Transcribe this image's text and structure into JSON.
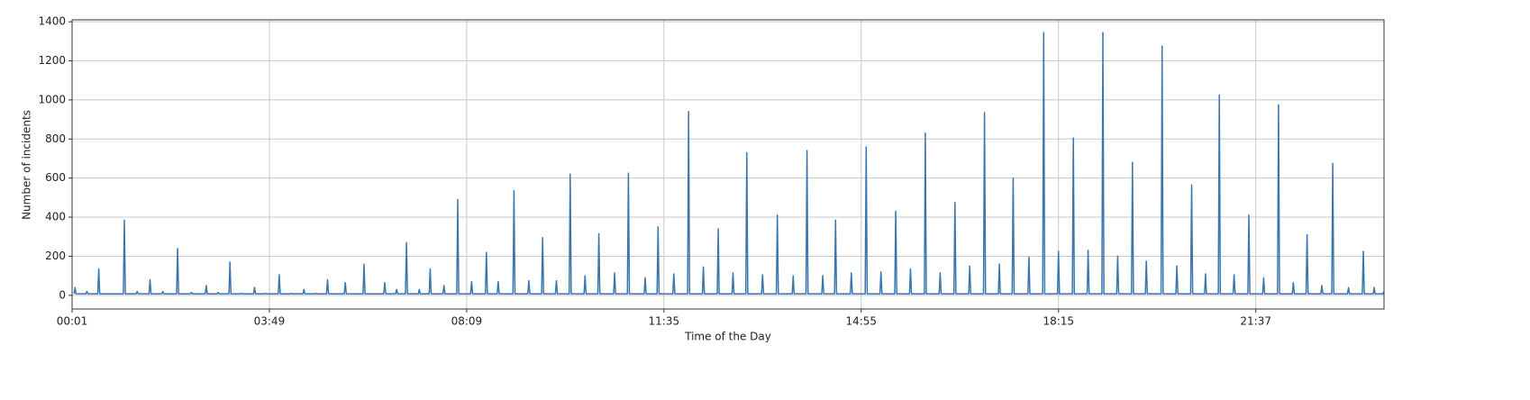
{
  "chart_data": {
    "type": "line",
    "xlabel": "Time of the Day",
    "ylabel": "Number of incidents",
    "xlim": [
      0,
      1330
    ],
    "ylim": [
      -70,
      1410
    ],
    "xticks": [
      {
        "value": 0,
        "label": "00:01"
      },
      {
        "value": 200,
        "label": "03:49"
      },
      {
        "value": 400,
        "label": "08:09"
      },
      {
        "value": 600,
        "label": "11:35"
      },
      {
        "value": 800,
        "label": "14:55"
      },
      {
        "value": 1000,
        "label": "18:15"
      },
      {
        "value": 1200,
        "label": "21:37"
      }
    ],
    "yticks": [
      0,
      200,
      400,
      600,
      800,
      1000,
      1200,
      1400
    ],
    "grid": true,
    "series": [
      {
        "color": "#3a76ae",
        "x": [
          2,
          3,
          4,
          14,
          15,
          16,
          26,
          27,
          28,
          52,
          53,
          54,
          65,
          66,
          67,
          78,
          79,
          80,
          91,
          92,
          93,
          106,
          107,
          108,
          120,
          121,
          122,
          135,
          136,
          137,
          147,
          148,
          149,
          159,
          160,
          161,
          171,
          172,
          173,
          184,
          185,
          186,
          195,
          196,
          197,
          209,
          210,
          211,
          221,
          222,
          223,
          234,
          235,
          236,
          246,
          247,
          248,
          258,
          259,
          260,
          276,
          277,
          278,
          295,
          296,
          297,
          316,
          317,
          318,
          328,
          329,
          330,
          338,
          339,
          340,
          351,
          352,
          353,
          362,
          363,
          364,
          376,
          377,
          378,
          390,
          391,
          392,
          404,
          405,
          406,
          419,
          420,
          421,
          431,
          432,
          433,
          447,
          448,
          449,
          462,
          463,
          464,
          476,
          477,
          478,
          490,
          491,
          492,
          504,
          505,
          506,
          519,
          520,
          521,
          533,
          534,
          535,
          549,
          550,
          551,
          563,
          564,
          565,
          580,
          581,
          582,
          593,
          594,
          595,
          609,
          610,
          611,
          624,
          625,
          626,
          639,
          640,
          641,
          654,
          655,
          656,
          669,
          670,
          671,
          683,
          684,
          685,
          699,
          700,
          701,
          714,
          715,
          716,
          730,
          731,
          732,
          744,
          745,
          746,
          760,
          761,
          762,
          773,
          774,
          775,
          789,
          790,
          791,
          804,
          805,
          806,
          819,
          820,
          821,
          834,
          835,
          836,
          849,
          850,
          851,
          864,
          865,
          866,
          879,
          880,
          881,
          894,
          895,
          896,
          909,
          910,
          911,
          924,
          925,
          926,
          939,
          940,
          941,
          953,
          954,
          955,
          969,
          970,
          971,
          984,
          985,
          986,
          999,
          1000,
          1001,
          1014,
          1015,
          1016,
          1029,
          1030,
          1031,
          1044,
          1045,
          1046,
          1059,
          1060,
          1061,
          1074,
          1075,
          1076,
          1088,
          1089,
          1090,
          1104,
          1105,
          1106,
          1119,
          1120,
          1121,
          1134,
          1135,
          1136,
          1148,
          1149,
          1150,
          1162,
          1163,
          1164,
          1177,
          1178,
          1179,
          1192,
          1193,
          1194,
          1207,
          1208,
          1209,
          1222,
          1223,
          1224,
          1237,
          1238,
          1239,
          1251,
          1252,
          1253,
          1266,
          1267,
          1268,
          1277,
          1278,
          1279,
          1293,
          1294,
          1295,
          1308,
          1309,
          1310,
          1319,
          1320,
          1321,
          1329,
          1330
        ],
        "values": [
          8,
          40,
          8,
          8,
          20,
          8,
          8,
          135,
          8,
          8,
          385,
          8,
          8,
          20,
          8,
          8,
          80,
          8,
          8,
          20,
          8,
          8,
          240,
          8,
          8,
          15,
          8,
          8,
          50,
          8,
          8,
          15,
          8,
          8,
          170,
          8,
          8,
          10,
          8,
          8,
          40,
          8,
          8,
          10,
          8,
          8,
          105,
          8,
          8,
          10,
          8,
          8,
          30,
          8,
          8,
          10,
          8,
          8,
          80,
          8,
          8,
          65,
          8,
          8,
          160,
          8,
          8,
          65,
          8,
          8,
          30,
          8,
          8,
          270,
          8,
          8,
          30,
          8,
          8,
          135,
          8,
          8,
          50,
          8,
          8,
          490,
          8,
          8,
          70,
          8,
          8,
          220,
          8,
          8,
          70,
          8,
          8,
          535,
          8,
          8,
          75,
          8,
          8,
          295,
          8,
          8,
          75,
          8,
          8,
          620,
          8,
          8,
          100,
          8,
          8,
          315,
          8,
          8,
          115,
          8,
          8,
          625,
          8,
          8,
          90,
          8,
          8,
          350,
          8,
          8,
          110,
          8,
          8,
          940,
          8,
          8,
          145,
          8,
          8,
          340,
          8,
          8,
          115,
          8,
          8,
          730,
          8,
          8,
          105,
          8,
          8,
          410,
          8,
          8,
          100,
          8,
          8,
          740,
          8,
          8,
          100,
          8,
          8,
          385,
          8,
          8,
          115,
          8,
          8,
          760,
          8,
          8,
          120,
          8,
          8,
          430,
          8,
          8,
          135,
          8,
          8,
          830,
          8,
          8,
          115,
          8,
          8,
          475,
          8,
          8,
          150,
          8,
          8,
          935,
          8,
          8,
          160,
          8,
          8,
          600,
          8,
          8,
          195,
          8,
          8,
          1345,
          8,
          8,
          225,
          8,
          8,
          805,
          8,
          8,
          230,
          8,
          8,
          1345,
          8,
          8,
          200,
          8,
          8,
          680,
          8,
          8,
          175,
          8,
          8,
          1275,
          8,
          8,
          150,
          8,
          8,
          565,
          8,
          8,
          110,
          8,
          8,
          1025,
          8,
          8,
          105,
          8,
          8,
          410,
          8,
          8,
          90,
          8,
          8,
          975,
          8,
          8,
          65,
          8,
          8,
          310,
          8,
          8,
          50,
          8,
          8,
          675,
          8,
          8,
          40,
          8,
          8,
          225,
          8,
          8,
          40,
          8,
          8,
          20
        ]
      }
    ]
  }
}
